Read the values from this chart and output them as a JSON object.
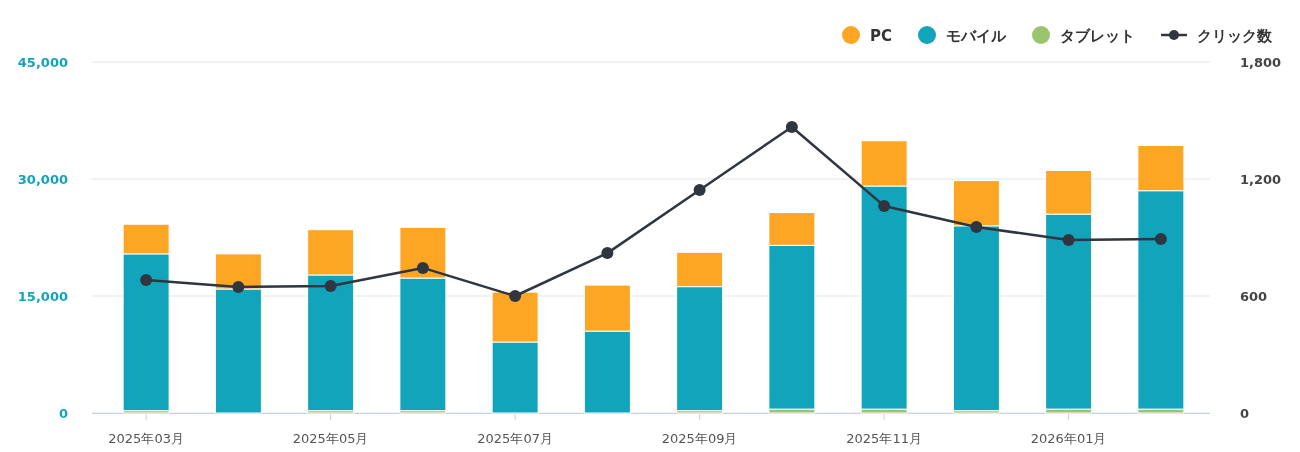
{
  "chart_data": {
    "type": "bar",
    "stacked": true,
    "categories": [
      "2025年03月",
      null,
      "2025年05月",
      null,
      "2025年07月",
      null,
      "2025年09月",
      null,
      "2025年11月",
      null,
      "2026年01月",
      null
    ],
    "series": [
      {
        "name": "タブレット",
        "color": "#9bc46e",
        "values": [
          300,
          null,
          300,
          300,
          null,
          null,
          300,
          500,
          500,
          300,
          500,
          500
        ]
      },
      {
        "name": "モバイル",
        "color": "#11a4bb",
        "values": [
          20100,
          15900,
          17400,
          17000,
          9100,
          10500,
          15900,
          21000,
          28600,
          23700,
          25000,
          28000
        ]
      },
      {
        "name": "PC",
        "color": "#fca624",
        "values": [
          3800,
          4500,
          5800,
          6500,
          6400,
          5900,
          4400,
          4200,
          5800,
          5800,
          5600,
          5800
        ]
      },
      {
        "name": "クリック数",
        "type": "line",
        "axis": "y2",
        "color": "#2f3640",
        "marker": "circle",
        "values": [
          682,
          646,
          651,
          744,
          600,
          820,
          1144,
          1467,
          1062,
          954,
          887,
          892
        ]
      }
    ],
    "ylim": [
      0,
      45000
    ],
    "yticks": [
      {
        "value": 0,
        "label": "0"
      },
      {
        "value": 15000,
        "label": "15,000"
      },
      {
        "value": 30000,
        "label": "30,000"
      },
      {
        "value": 45000,
        "label": "45,000"
      }
    ],
    "y2lim": [
      0,
      1800
    ],
    "y2ticks": [
      0,
      600,
      {
        "value": 1200,
        "label": "1,200"
      },
      {
        "value": 1800,
        "label": "1,800"
      }
    ],
    "grid": "y",
    "legend": "top right"
  }
}
